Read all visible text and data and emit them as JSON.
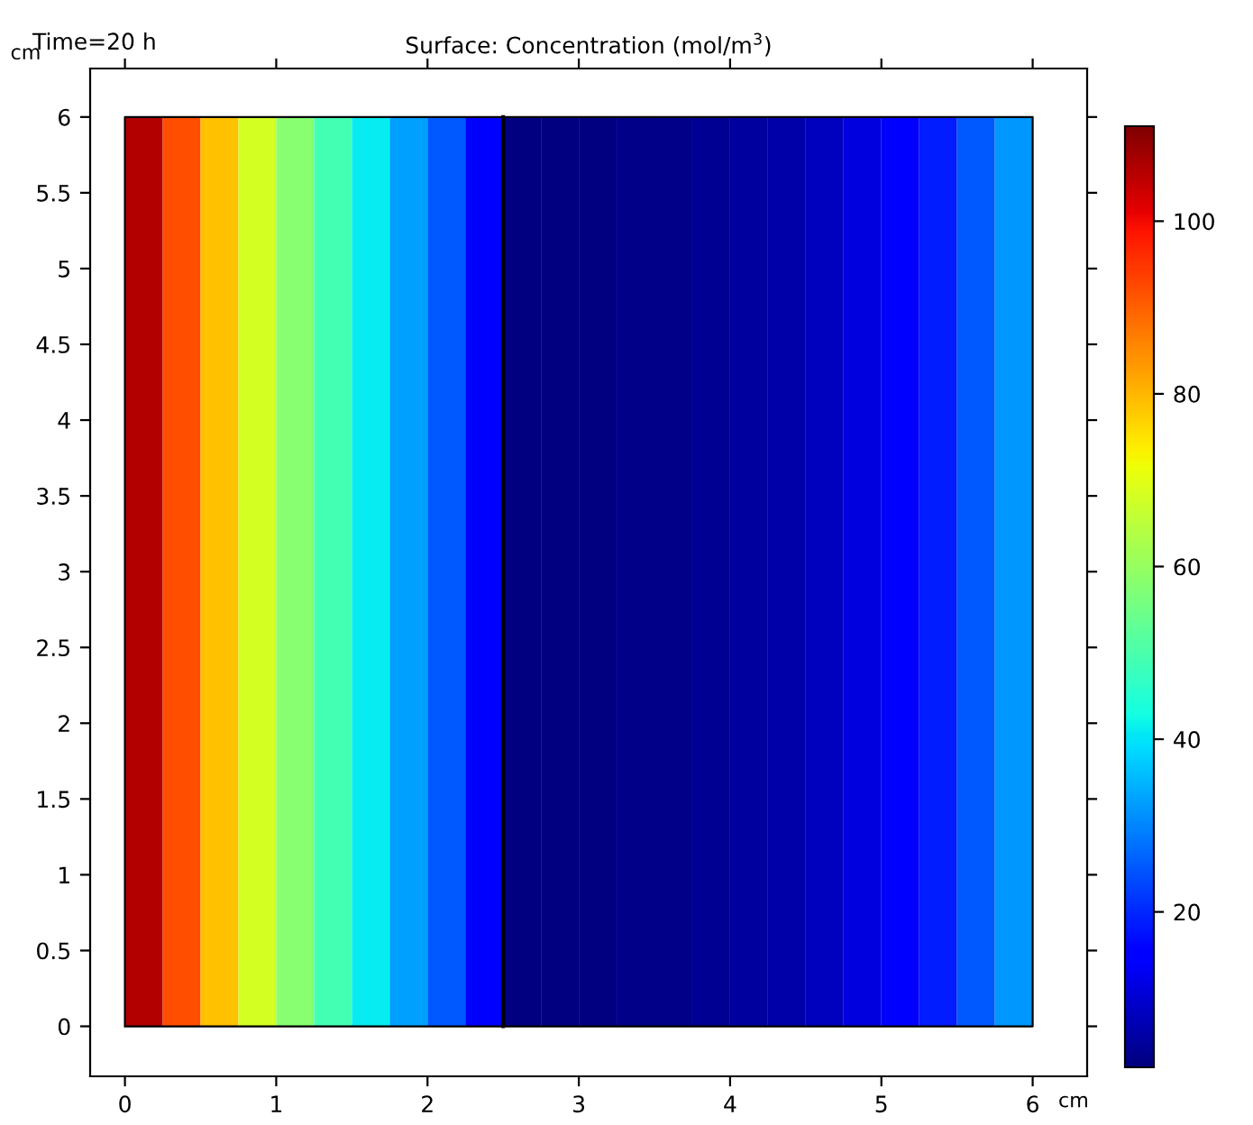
{
  "chart_data": {
    "type": "heatmap",
    "title": "Surface: Concentration (mol/m$^{3}$)",
    "xlabel": "cm",
    "ylabel": "cm",
    "annotations": [
      "Time=20 h"
    ],
    "x": [
      0.125,
      0.375,
      0.625,
      0.875,
      1.125,
      1.375,
      1.625,
      1.875,
      2.125,
      2.375,
      2.625,
      2.875,
      3.125,
      3.375,
      3.625,
      3.875,
      4.125,
      4.375,
      4.625,
      4.875,
      5.125,
      5.375,
      5.625,
      5.875
    ],
    "cells": [
      [
        106,
        92,
        79,
        68,
        58,
        49,
        41,
        33,
        25,
        16,
        2,
        2,
        2,
        3,
        3,
        4,
        5,
        6,
        8,
        11,
        14,
        19,
        25,
        32
      ]
    ],
    "xlim": [
      -0.23,
      6.36
    ],
    "ylim": [
      -0.33,
      6.32
    ],
    "xticks": [
      0,
      1,
      2,
      3,
      4,
      5,
      6
    ],
    "yticks": [
      0,
      0.5,
      1,
      1.5,
      2,
      2.5,
      3,
      3.5,
      4,
      4.5,
      5,
      5.5,
      6
    ],
    "clim": [
      2,
      111
    ],
    "cticks": [
      20,
      40,
      60,
      80,
      100
    ],
    "ref_lines": [
      {
        "axis": "x",
        "value": 2.5,
        "color": "#000000"
      }
    ],
    "grid": false
  }
}
